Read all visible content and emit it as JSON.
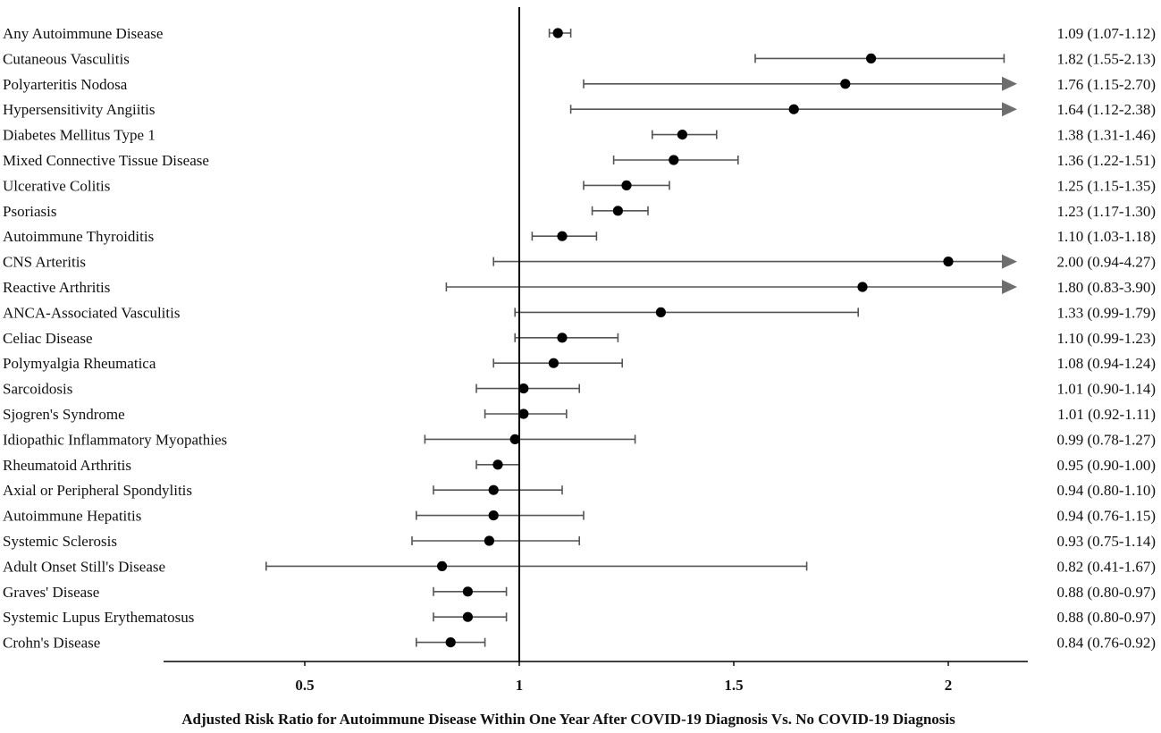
{
  "chart_data": {
    "type": "forest",
    "xlabel": "Adjusted Risk Ratio for Autoimmune  Disease Within One Year After COVID-19 Diagnosis Vs. No COVID-19 Diagnosis",
    "xticks": [
      "0.5",
      "1",
      "1.5",
      "2"
    ],
    "xtick_values": [
      0.5,
      1,
      1.5,
      2
    ],
    "xlim": [
      0.17,
      2.15
    ],
    "reference_line": 1,
    "rows": [
      {
        "label": "Any Autoimmune  Disease",
        "estimate": 1.09,
        "lower": 1.07,
        "upper": 1.12,
        "text": "1.09 (1.07-1.12)"
      },
      {
        "label": "Cutaneous Vasculitis",
        "estimate": 1.82,
        "lower": 1.55,
        "upper": 2.13,
        "text": "1.82 (1.55-2.13)"
      },
      {
        "label": "Polyarteritis Nodosa",
        "estimate": 1.76,
        "lower": 1.15,
        "upper": 2.7,
        "text": "1.76 (1.15-2.70)",
        "truncated": true
      },
      {
        "label": "Hypersensitivity  Angiitis",
        "estimate": 1.64,
        "lower": 1.12,
        "upper": 2.38,
        "text": "1.64 (1.12-2.38)",
        "truncated": true
      },
      {
        "label": "Diabetes Mellitus  Type 1",
        "estimate": 1.38,
        "lower": 1.31,
        "upper": 1.46,
        "text": "1.38 (1.31-1.46)"
      },
      {
        "label": "Mixed Connective Tissue Disease",
        "estimate": 1.36,
        "lower": 1.22,
        "upper": 1.51,
        "text": "1.36 (1.22-1.51)"
      },
      {
        "label": "Ulcerative  Colitis",
        "estimate": 1.25,
        "lower": 1.15,
        "upper": 1.35,
        "text": "1.25 (1.15-1.35)"
      },
      {
        "label": "Psoriasis",
        "estimate": 1.23,
        "lower": 1.17,
        "upper": 1.3,
        "text": "1.23 (1.17-1.30)"
      },
      {
        "label": "Autoimmune  Thyroiditis",
        "estimate": 1.1,
        "lower": 1.03,
        "upper": 1.18,
        "text": "1.10 (1.03-1.18)"
      },
      {
        "label": "CNS Arteritis",
        "estimate": 2.0,
        "lower": 0.94,
        "upper": 4.27,
        "text": "2.00 (0.94-4.27)",
        "truncated": true
      },
      {
        "label": "Reactive Arthritis",
        "estimate": 1.8,
        "lower": 0.83,
        "upper": 3.9,
        "text": "1.80 (0.83-3.90)",
        "truncated": true
      },
      {
        "label": "ANCA-Associated Vasculitis",
        "estimate": 1.33,
        "lower": 0.99,
        "upper": 1.79,
        "text": "1.33 (0.99-1.79)"
      },
      {
        "label": "Celiac Disease",
        "estimate": 1.1,
        "lower": 0.99,
        "upper": 1.23,
        "text": "1.10 (0.99-1.23)"
      },
      {
        "label": "Polymyalgia  Rheumatica",
        "estimate": 1.08,
        "lower": 0.94,
        "upper": 1.24,
        "text": "1.08 (0.94-1.24)"
      },
      {
        "label": "Sarcoidosis",
        "estimate": 1.01,
        "lower": 0.9,
        "upper": 1.14,
        "text": "1.01 (0.90-1.14)"
      },
      {
        "label": "Sjogren's Syndrome",
        "estimate": 1.01,
        "lower": 0.92,
        "upper": 1.11,
        "text": "1.01 (0.92-1.11)"
      },
      {
        "label": "Idiopathic Inflammatory  Myopathies",
        "estimate": 0.99,
        "lower": 0.78,
        "upper": 1.27,
        "text": "0.99 (0.78-1.27)"
      },
      {
        "label": "Rheumatoid Arthritis",
        "estimate": 0.95,
        "lower": 0.9,
        "upper": 1.0,
        "text": "0.95 (0.90-1.00)"
      },
      {
        "label": "Axial  or Peripheral Spondylitis",
        "estimate": 0.94,
        "lower": 0.8,
        "upper": 1.1,
        "text": "0.94 (0.80-1.10)"
      },
      {
        "label": "Autoimmune  Hepatitis",
        "estimate": 0.94,
        "lower": 0.76,
        "upper": 1.15,
        "text": "0.94 (0.76-1.15)"
      },
      {
        "label": "Systemic Sclerosis",
        "estimate": 0.93,
        "lower": 0.75,
        "upper": 1.14,
        "text": "0.93 (0.75-1.14)"
      },
      {
        "label": "Adult Onset Still's Disease",
        "estimate": 0.82,
        "lower": 0.41,
        "upper": 1.67,
        "text": "0.82 (0.41-1.67)"
      },
      {
        "label": "Graves' Disease",
        "estimate": 0.88,
        "lower": 0.8,
        "upper": 0.97,
        "text": "0.88 (0.80-0.97)"
      },
      {
        "label": "Systemic Lupus Erythematosus",
        "estimate": 0.88,
        "lower": 0.8,
        "upper": 0.97,
        "text": "0.88 (0.80-0.97)"
      },
      {
        "label": "Crohn's Disease",
        "estimate": 0.84,
        "lower": 0.76,
        "upper": 0.92,
        "text": "0.84 (0.76-0.92)"
      }
    ],
    "colors": {
      "point": "#000000",
      "whisker": "#555555",
      "arrow": "#6e6e6e",
      "axis": "#000000"
    }
  }
}
